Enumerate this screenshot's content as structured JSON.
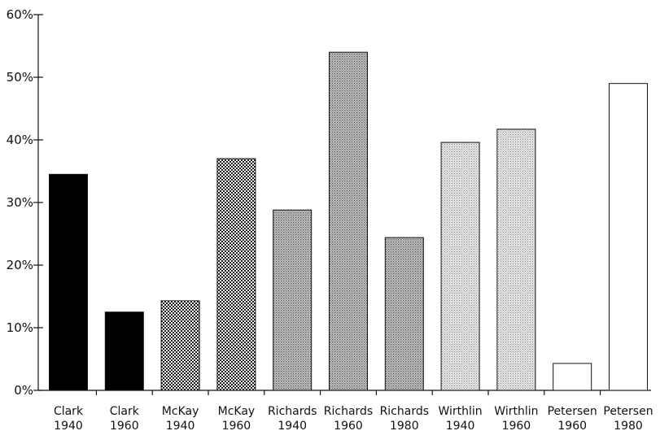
{
  "chart_data": {
    "type": "bar",
    "title": "",
    "xlabel": "",
    "ylabel": "",
    "ylim": [
      0,
      60
    ],
    "y_ticks": [
      0,
      10,
      20,
      30,
      40,
      50,
      60
    ],
    "y_tick_labels": [
      "0%",
      "10%",
      "20%",
      "30%",
      "40%",
      "50%",
      "60%"
    ],
    "grid": false,
    "legend": "none",
    "categories": [
      {
        "name": "Clark",
        "year": "1940"
      },
      {
        "name": "Clark",
        "year": "1960"
      },
      {
        "name": "McKay",
        "year": "1940"
      },
      {
        "name": "McKay",
        "year": "1960"
      },
      {
        "name": "Richards",
        "year": "1940"
      },
      {
        "name": "Richards",
        "year": "1960"
      },
      {
        "name": "Richards",
        "year": "1980"
      },
      {
        "name": "Wirthlin",
        "year": "1940"
      },
      {
        "name": "Wirthlin",
        "year": "1960"
      },
      {
        "name": "Petersen",
        "year": "1960"
      },
      {
        "name": "Petersen",
        "year": "1980"
      }
    ],
    "values": [
      34.5,
      12.5,
      14.3,
      37.0,
      28.8,
      54.0,
      24.4,
      39.6,
      41.7,
      4.3,
      49.0
    ],
    "bar_fills": [
      "solid-black",
      "solid-black",
      "checker-dark",
      "checker-dark",
      "dots-mid",
      "dots-mid",
      "dots-mid",
      "dots-light",
      "dots-light",
      "white",
      "white"
    ]
  }
}
